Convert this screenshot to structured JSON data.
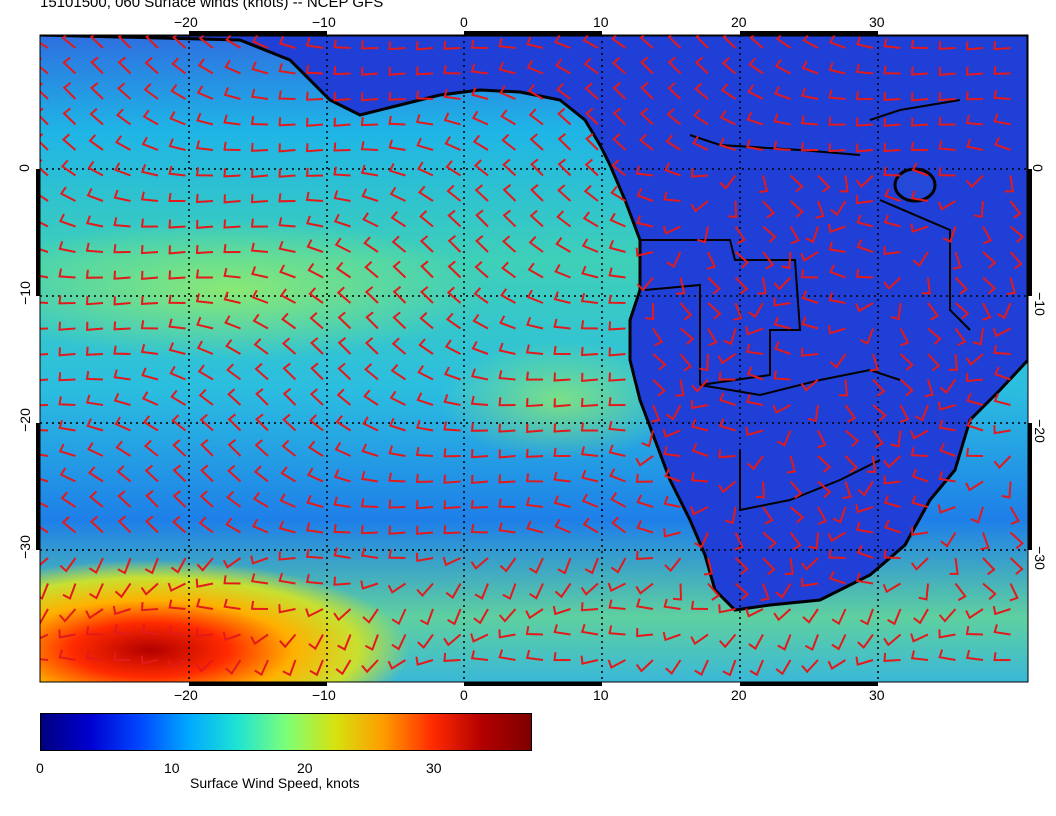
{
  "title": "15101500, 060 Surface winds (knots) -- NCEP GFS",
  "map": {
    "lon_range": [
      -30,
      41
    ],
    "lat_range": [
      -40,
      10
    ],
    "lon_ticks": [
      -20,
      -10,
      0,
      10,
      20,
      30
    ],
    "lat_ticks": [
      0,
      -10,
      -20,
      -30
    ],
    "lon_tick_labels": [
      "−20",
      "−10",
      "0",
      "10",
      "20",
      "30"
    ],
    "lat_tick_labels": [
      "0",
      "−10",
      "−20",
      "−30"
    ],
    "grid": true,
    "field": "surface wind speed",
    "barb_color": "#e31a1c",
    "coast_color": "#000000"
  },
  "colorbar": {
    "label": "Surface Wind Speed, knots",
    "range": [
      0,
      37
    ],
    "ticks": [
      0,
      10,
      20,
      30
    ],
    "tick_labels": [
      "0",
      "10",
      "20",
      "30"
    ],
    "colors": [
      "#00007f",
      "#0000d0",
      "#0045ff",
      "#00a8ff",
      "#1ee3d4",
      "#7cff79",
      "#d6e20f",
      "#ff9b00",
      "#ff2a00",
      "#b20000",
      "#7f0000"
    ]
  }
}
